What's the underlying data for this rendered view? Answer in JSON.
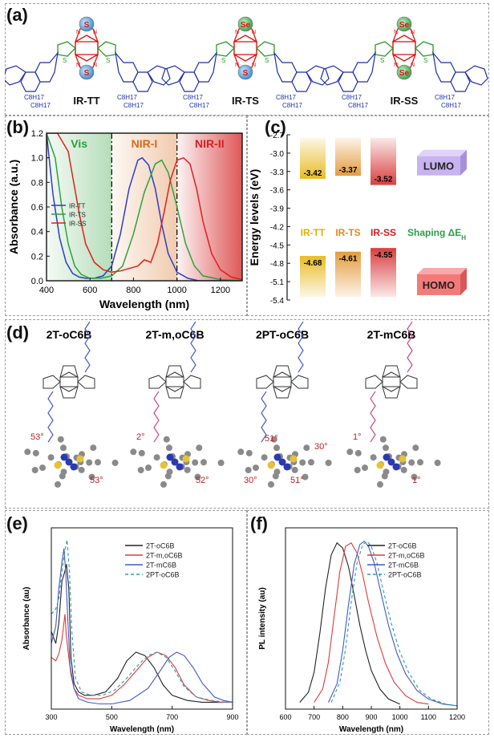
{
  "figure": {
    "panel_a": {
      "label": "(a)",
      "molecules": [
        {
          "name": "IR-TT",
          "x_atoms": [
            "S",
            "S"
          ],
          "sub_left": [
            "C8H17",
            "C8H17"
          ],
          "sub_right": [
            "C8H17",
            "C8H17"
          ]
        },
        {
          "name": "IR-TS",
          "x_atoms": [
            "Se",
            "S"
          ],
          "sub_left": [
            "C8H17",
            "C8H17"
          ],
          "sub_right": [
            "C8H17",
            "C8H17"
          ]
        },
        {
          "name": "IR-SS",
          "x_atoms": [
            "Se",
            "Se"
          ],
          "sub_left": [
            "C8H17",
            "C8H17"
          ],
          "sub_right": [
            "C8H17",
            "C8H17"
          ]
        }
      ]
    },
    "panel_b": {
      "label": "(b)"
    },
    "panel_c": {
      "label": "(c)"
    },
    "panel_d": {
      "label": "(d)",
      "molecules": [
        {
          "name": "2T-oC6B",
          "angles": [
            "53°",
            "53°"
          ]
        },
        {
          "name": "2T-m,oC6B",
          "angles": [
            "2°",
            "52°"
          ]
        },
        {
          "name": "2PT-oC6B",
          "angles": [
            "51°",
            "30°",
            "30°",
            "51°"
          ]
        },
        {
          "name": "2T-mC6B",
          "angles": [
            "1°",
            "1°"
          ]
        }
      ]
    },
    "panel_e": {
      "label": "(e)"
    },
    "panel_f": {
      "label": "(f)"
    }
  },
  "chart_data": [
    {
      "id": "b",
      "type": "line",
      "xlabel": "Wavelength (nm)",
      "ylabel": "Absorbance (a.u.)",
      "xlim": [
        400,
        1300
      ],
      "ylim": [
        0,
        1.2
      ],
      "xticks": [
        400,
        600,
        800,
        1000,
        1200
      ],
      "yticks": [
        0.0,
        0.2,
        0.4,
        0.6,
        0.8,
        1.0,
        1.2
      ],
      "regions": [
        {
          "name": "Vis",
          "range": [
            400,
            700
          ],
          "color": "#2e9e3a"
        },
        {
          "name": "NIR-I",
          "range": [
            700,
            1000
          ],
          "color": "#d66a1a"
        },
        {
          "name": "NIR-II",
          "range": [
            1000,
            1300
          ],
          "color": "#d32020"
        }
      ],
      "boundaries": [
        700,
        1000
      ],
      "legend": "upper-left",
      "series": [
        {
          "name": "IR-TT",
          "color": "#2b3ec2",
          "x": [
            400,
            430,
            460,
            490,
            520,
            550,
            580,
            620,
            660,
            700,
            740,
            780,
            820,
            840,
            870,
            900,
            930,
            960,
            1000,
            1050,
            1100,
            1200,
            1300
          ],
          "y": [
            1.2,
            0.7,
            0.35,
            0.15,
            0.06,
            0.03,
            0.02,
            0.02,
            0.04,
            0.12,
            0.38,
            0.75,
            0.98,
            1.0,
            0.94,
            0.75,
            0.46,
            0.22,
            0.07,
            0.02,
            0.0,
            0.0,
            0.0
          ]
        },
        {
          "name": "IR-TS",
          "color": "#2ca33a",
          "x": [
            400,
            440,
            470,
            500,
            530,
            560,
            600,
            650,
            700,
            750,
            800,
            850,
            900,
            930,
            960,
            1000,
            1040,
            1080,
            1120,
            1200,
            1300
          ],
          "y": [
            1.2,
            1.0,
            0.6,
            0.3,
            0.12,
            0.05,
            0.02,
            0.02,
            0.04,
            0.12,
            0.38,
            0.72,
            0.95,
            0.98,
            0.88,
            0.6,
            0.3,
            0.12,
            0.04,
            0.01,
            0.0
          ]
        },
        {
          "name": "IR-SS",
          "color": "#e0201c",
          "x": [
            400,
            450,
            500,
            550,
            580,
            620,
            660,
            700,
            740,
            780,
            820,
            850,
            880,
            910,
            940,
            970,
            1000,
            1030,
            1060,
            1090,
            1120,
            1160,
            1200,
            1250,
            1300
          ],
          "y": [
            1.2,
            1.2,
            1.05,
            0.55,
            0.3,
            0.15,
            0.09,
            0.07,
            0.08,
            0.1,
            0.12,
            0.17,
            0.15,
            0.3,
            0.55,
            0.82,
            0.98,
            1.0,
            0.95,
            0.75,
            0.48,
            0.22,
            0.09,
            0.03,
            0.01
          ]
        }
      ]
    },
    {
      "id": "c",
      "type": "bar",
      "ylabel": "Energy levels (eV)",
      "ylim": [
        -5.4,
        -2.7
      ],
      "yticks": [
        -2.7,
        -3.0,
        -3.3,
        -3.6,
        -3.9,
        -4.2,
        -4.5,
        -4.8,
        -5.1,
        -5.4
      ],
      "categories": [
        "IR-TT",
        "IR-TS",
        "IR-SS"
      ],
      "category_colors": [
        "#e4b000",
        "#e08a1e",
        "#d21d1d"
      ],
      "lumo": [
        -3.42,
        -3.37,
        -3.52
      ],
      "homo": [
        -4.68,
        -4.61,
        -4.55
      ],
      "lumo_labels": [
        "-3.42",
        "-3.37",
        "-3.52"
      ],
      "homo_labels": [
        "-4.68",
        "-4.61",
        "-4.55"
      ],
      "annotations": {
        "lumo": "LUMO",
        "homo": "HOMO",
        "shaping_prefix": "Shaping ΔE",
        "shaping_sub": "H"
      }
    },
    {
      "id": "e",
      "type": "line",
      "xlabel": "Wavelength (nm)",
      "ylabel": "Absorbance (au)",
      "xlim": [
        300,
        900
      ],
      "ylim": [
        0,
        1.05
      ],
      "xticks": [
        300,
        500,
        700,
        900
      ],
      "legend": "upper-right",
      "series": [
        {
          "name": "2T-oC6B",
          "color": "#222222",
          "dash": "",
          "x": [
            300,
            315,
            325,
            335,
            345,
            350,
            358,
            365,
            375,
            390,
            410,
            440,
            480,
            520,
            550,
            580,
            610,
            640,
            670,
            700,
            750,
            800,
            850,
            900
          ],
          "y": [
            0.45,
            0.38,
            0.5,
            0.74,
            0.8,
            0.84,
            0.7,
            0.3,
            0.15,
            0.1,
            0.08,
            0.08,
            0.1,
            0.18,
            0.28,
            0.33,
            0.31,
            0.24,
            0.14,
            0.08,
            0.05,
            0.04,
            0.04,
            0.04
          ]
        },
        {
          "name": "2T-m,oC6B",
          "color": "#e03a3a",
          "dash": "",
          "x": [
            300,
            315,
            325,
            335,
            345,
            350,
            358,
            365,
            375,
            390,
            420,
            460,
            500,
            540,
            580,
            620,
            650,
            680,
            710,
            740,
            780,
            820,
            860,
            900
          ],
          "y": [
            0.3,
            0.28,
            0.32,
            0.4,
            0.55,
            0.42,
            0.3,
            0.2,
            0.12,
            0.08,
            0.06,
            0.06,
            0.08,
            0.14,
            0.22,
            0.3,
            0.33,
            0.31,
            0.24,
            0.14,
            0.07,
            0.05,
            0.04,
            0.04
          ]
        },
        {
          "name": "2T-mC6B",
          "color": "#4458c8",
          "dash": "",
          "x": [
            300,
            315,
            325,
            335,
            342,
            348,
            355,
            362,
            375,
            390,
            420,
            460,
            500,
            560,
            620,
            660,
            690,
            715,
            740,
            770,
            800,
            840,
            870,
            900
          ],
          "y": [
            0.38,
            0.48,
            0.7,
            0.85,
            0.93,
            0.78,
            0.5,
            0.25,
            0.12,
            0.06,
            0.04,
            0.03,
            0.03,
            0.05,
            0.12,
            0.22,
            0.3,
            0.33,
            0.31,
            0.24,
            0.15,
            0.07,
            0.05,
            0.04
          ]
        },
        {
          "name": "2PT-oC6B",
          "color": "#2a9ea0",
          "dash": "4,3",
          "x": [
            300,
            315,
            325,
            335,
            345,
            352,
            360,
            368,
            380,
            400,
            430,
            470,
            510,
            550,
            590,
            620,
            650,
            680,
            710,
            740,
            780,
            830,
            880,
            900
          ],
          "y": [
            0.55,
            0.58,
            0.64,
            0.8,
            0.92,
            0.98,
            0.8,
            0.45,
            0.18,
            0.1,
            0.08,
            0.08,
            0.11,
            0.18,
            0.26,
            0.31,
            0.33,
            0.3,
            0.22,
            0.13,
            0.07,
            0.05,
            0.04,
            0.04
          ]
        }
      ]
    },
    {
      "id": "f",
      "type": "line",
      "xlabel": "Wavelength (nm)",
      "ylabel": "PL intensity (au)",
      "xlim": [
        600,
        1200
      ],
      "ylim": [
        0,
        1.08
      ],
      "xticks": [
        600,
        700,
        800,
        900,
        1000,
        1100,
        1200
      ],
      "legend": "upper-right",
      "series": [
        {
          "name": "2T-oC6B",
          "color": "#222222",
          "dash": "",
          "x": [
            650,
            680,
            700,
            720,
            740,
            760,
            780,
            800,
            820,
            840,
            860,
            880,
            900,
            930,
            960,
            1000
          ],
          "y": [
            0.04,
            0.1,
            0.22,
            0.45,
            0.72,
            0.92,
            0.99,
            0.96,
            0.85,
            0.68,
            0.5,
            0.35,
            0.23,
            0.12,
            0.06,
            0.03
          ]
        },
        {
          "name": "2T-m,oC6B",
          "color": "#e03a3a",
          "dash": "",
          "x": [
            700,
            730,
            750,
            770,
            790,
            810,
            830,
            850,
            870,
            890,
            920,
            950,
            980,
            1020,
            1060,
            1100
          ],
          "y": [
            0.04,
            0.12,
            0.28,
            0.55,
            0.82,
            0.97,
            0.99,
            0.93,
            0.8,
            0.64,
            0.43,
            0.27,
            0.16,
            0.08,
            0.04,
            0.03
          ]
        },
        {
          "name": "2T-mC6B",
          "color": "#4458c8",
          "dash": "",
          "x": [
            750,
            780,
            800,
            820,
            840,
            860,
            875,
            890,
            910,
            930,
            960,
            990,
            1020,
            1060,
            1100,
            1150,
            1200
          ],
          "y": [
            0.04,
            0.15,
            0.35,
            0.62,
            0.86,
            0.98,
            1.0,
            0.97,
            0.87,
            0.72,
            0.5,
            0.33,
            0.21,
            0.11,
            0.06,
            0.03,
            0.02
          ]
        },
        {
          "name": "2PT-oC6B",
          "color": "#2a9ea0",
          "dash": "4,3",
          "x": [
            760,
            790,
            810,
            830,
            850,
            870,
            885,
            900,
            920,
            940,
            970,
            1000,
            1030,
            1070,
            1110,
            1160,
            1200
          ],
          "y": [
            0.04,
            0.16,
            0.36,
            0.64,
            0.87,
            0.98,
            1.0,
            0.97,
            0.87,
            0.72,
            0.51,
            0.34,
            0.22,
            0.11,
            0.06,
            0.03,
            0.02
          ]
        }
      ]
    }
  ]
}
